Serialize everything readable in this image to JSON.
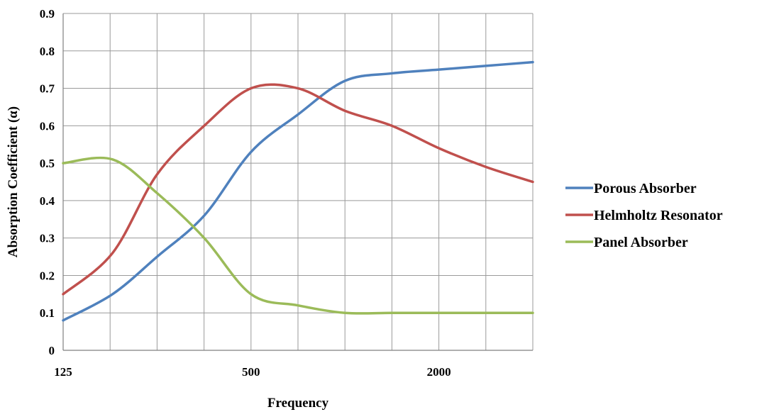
{
  "chart_data": {
    "type": "line",
    "xlabel": "Frequency",
    "ylabel": "Absorption Coefficient (α)",
    "x_tick_labels": [
      "125",
      "500",
      "2000"
    ],
    "y_ticks": [
      0,
      0.1,
      0.2,
      0.3,
      0.4,
      0.5,
      0.6,
      0.7,
      0.8,
      0.9
    ],
    "y_tick_labels": [
      "0",
      "0.1",
      "0.2",
      "0.3",
      "0.4",
      "0.5",
      "0.6",
      "0.7",
      "0.8",
      "0.9"
    ],
    "ylim": [
      0,
      0.9
    ],
    "x_scale": "log2",
    "xlim": [
      125,
      4000
    ],
    "grid": true,
    "legend_position": "right",
    "series": [
      {
        "name": "Porous Absorber",
        "color": "#4f81bd",
        "x": [
          125,
          180,
          250,
          354,
          500,
          707,
          1000,
          1414,
          2000,
          2828,
          4000
        ],
        "y": [
          0.08,
          0.15,
          0.25,
          0.36,
          0.53,
          0.63,
          0.72,
          0.74,
          0.75,
          0.76,
          0.77
        ]
      },
      {
        "name": "Helmholtz Resonator",
        "color": "#c0504d",
        "x": [
          125,
          180,
          250,
          354,
          500,
          707,
          1000,
          1414,
          2000,
          2828,
          4000
        ],
        "y": [
          0.15,
          0.26,
          0.47,
          0.6,
          0.7,
          0.7,
          0.64,
          0.6,
          0.54,
          0.49,
          0.45
        ]
      },
      {
        "name": "Panel Absorber",
        "color": "#9bbb59",
        "x": [
          125,
          180,
          250,
          354,
          500,
          707,
          1000,
          1414,
          2000,
          2828,
          4000
        ],
        "y": [
          0.5,
          0.51,
          0.42,
          0.3,
          0.15,
          0.12,
          0.1,
          0.1,
          0.1,
          0.1,
          0.1
        ]
      }
    ]
  }
}
